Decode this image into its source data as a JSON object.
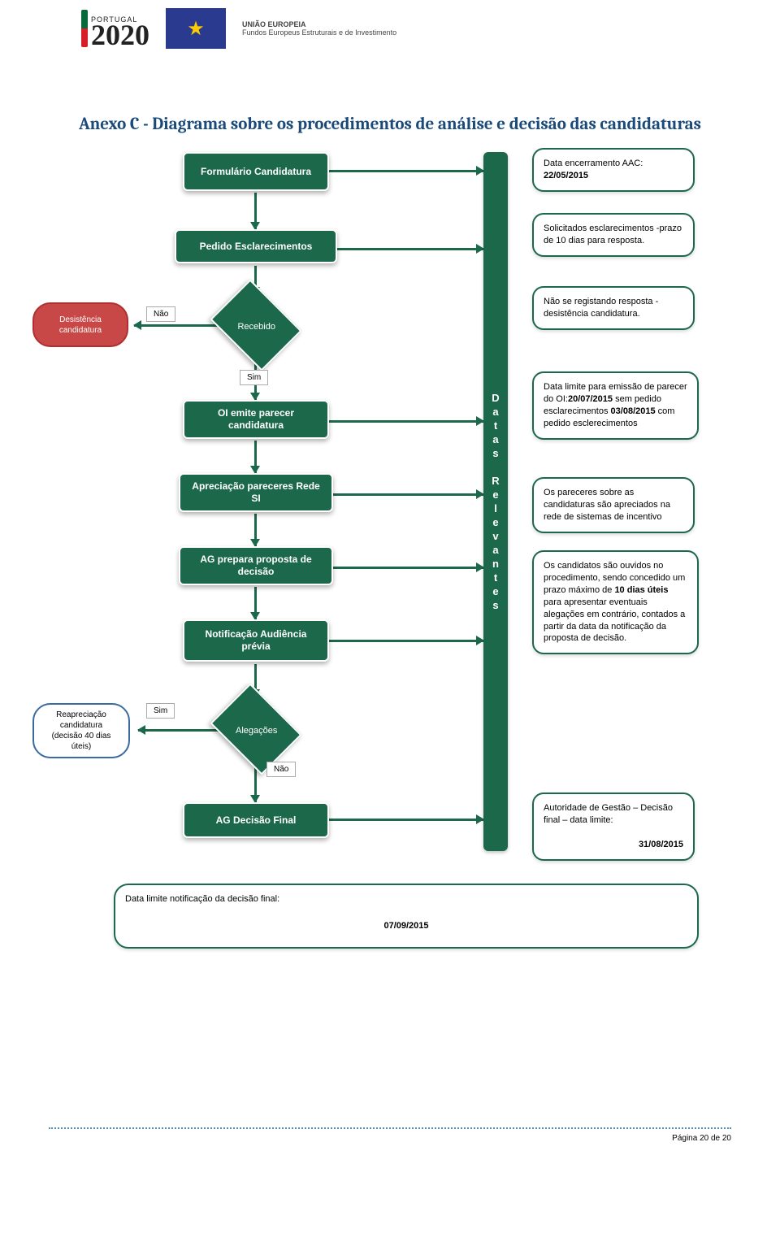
{
  "header": {
    "logo_portugal_small": "PORTUGAL",
    "logo_2020": "2020",
    "eu_title": "UNIÃO EUROPEIA",
    "eu_sub": "Fundos Europeus Estruturais e de Investimento"
  },
  "title": "Anexo C - Diagrama sobre os procedimentos de análise e decisão das candidaturas",
  "nodes": {
    "formulario": "Formulário Candidatura",
    "pedido": "Pedido Esclarecimentos",
    "recebido": "Recebido",
    "desistencia": "Desistência candidatura",
    "oi_parecer": "OI emite parecer candidatura",
    "apreciacao": "Apreciação pareceres Rede SI",
    "ag_prepara": "AG prepara proposta de decisão",
    "notificacao": "Notificação Audiência prévia",
    "alegacoes": "Alegações",
    "reapreciacao": "Reapreciação candidatura (decisão 40 dias úteis)",
    "ag_final": "AG Decisão Final"
  },
  "labels": {
    "nao": "Não",
    "sim": "Sim",
    "sim2": "Sim",
    "nao2": "Não"
  },
  "vbar_letters": [
    "D",
    "a",
    "t",
    "a",
    "s",
    "",
    "R",
    "e",
    "l",
    "e",
    "v",
    "a",
    "n",
    "t",
    "e",
    "s"
  ],
  "callouts": {
    "c1_a": "Data encerramento AAC:",
    "c1_b": "22/05/2015",
    "c2": "Solicitados esclarecimentos -prazo de 10 dias para resposta.",
    "c3": "Não se registando resposta - desistência candidatura.",
    "c4_a": "Data limite para emissão de parecer do OI:",
    "c4_b": "20/07/2015",
    "c4_c": " sem pedido esclarecimentos ",
    "c4_d": "03/08/2015",
    "c4_e": " com pedido esclerecimentos",
    "c5": "Os pareceres sobre as candidaturas são apreciados na rede de sistemas de incentivo",
    "c6_a": "Os candidatos são ouvidos no procedimento, sendo concedido um prazo máximo de ",
    "c6_b": "10 dias úteis",
    "c6_c": " para apresentar eventuais alegações em contrário, contados a partir da data da notificação da proposta de decisão.",
    "c7_a": "Autoridade de Gestão – Decisão final – data limite:",
    "c7_b": "31/08/2015",
    "c8_a": "Data limite notificação da decisão final:",
    "c8_b": "07/09/2015"
  },
  "footer": "Página 20 de 20",
  "colors": {
    "green": "#1c684a",
    "blue_title": "#1a4a7a",
    "red": "#c84848"
  }
}
